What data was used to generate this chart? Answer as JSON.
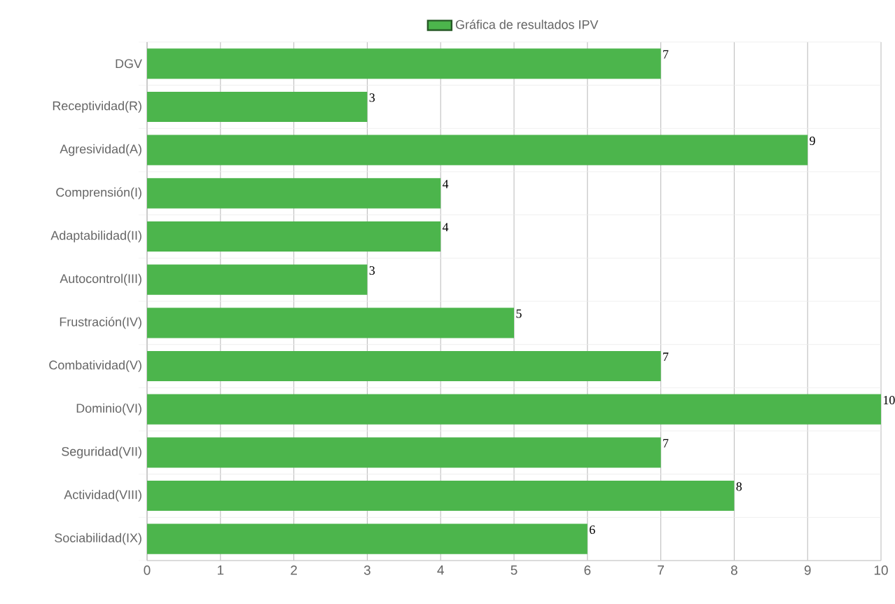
{
  "chart_data": {
    "type": "bar",
    "orientation": "horizontal",
    "categories": [
      "DGV",
      "Receptividad(R)",
      "Agresividad(A)",
      "Comprensión(I)",
      "Adaptabilidad(II)",
      "Autocontrol(III)",
      "Frustración(IV)",
      "Combatividad(V)",
      "Dominio(VI)",
      "Seguridad(VII)",
      "Actividad(VIII)",
      "Sociabilidad(IX)"
    ],
    "series": [
      {
        "name": "Gráfica de resultados IPV",
        "color": "#4cb54c",
        "values": [
          7,
          3,
          9,
          4,
          4,
          3,
          5,
          7,
          10,
          7,
          8,
          6
        ]
      }
    ],
    "xlim": [
      0,
      10
    ],
    "xticks": [
      0,
      1,
      2,
      3,
      4,
      5,
      6,
      7,
      8,
      9,
      10
    ],
    "grid": true,
    "legend": "top",
    "data_labels": true
  }
}
